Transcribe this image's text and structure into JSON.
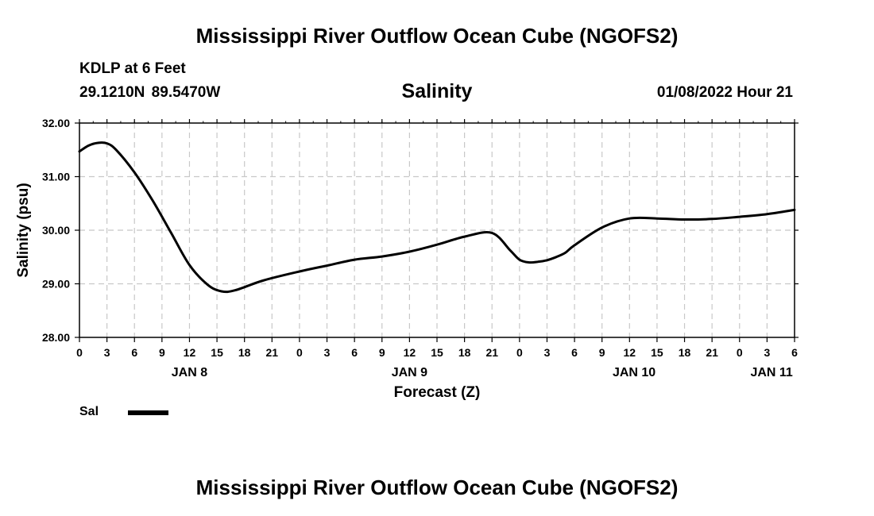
{
  "header": {
    "title": "Mississippi River Outflow Ocean Cube (NGOFS2)",
    "station": "KDLP at 6 Feet",
    "coords": "29.1210N 89.5470W",
    "chart_title": "Salinity",
    "datetime": "01/08/2022 Hour 21"
  },
  "legend": {
    "label": "Sal",
    "color": "#000000"
  },
  "footer": {
    "title": "Mississippi River Outflow Ocean Cube (NGOFS2)"
  },
  "chart_data": {
    "type": "line",
    "title": "Salinity",
    "xlabel": "Forecast (Z)",
    "ylabel": "Salinity (psu)",
    "xlim": [
      0,
      78
    ],
    "ylim": [
      28.0,
      32.0
    ],
    "grid": true,
    "y_ticks": [
      28.0,
      29.0,
      30.0,
      31.0,
      32.0
    ],
    "y_tick_labels": [
      "28.00",
      "29.00",
      "30.00",
      "31.00",
      "32.00"
    ],
    "x_ticks": [
      0,
      3,
      6,
      9,
      12,
      15,
      18,
      21,
      24,
      27,
      30,
      33,
      36,
      39,
      42,
      45,
      48,
      51,
      54,
      57,
      60,
      63,
      66,
      69,
      72,
      75,
      78
    ],
    "x_tick_labels": [
      "0",
      "3",
      "6",
      "9",
      "12",
      "15",
      "18",
      "21",
      "0",
      "3",
      "6",
      "9",
      "12",
      "15",
      "18",
      "21",
      "0",
      "3",
      "6",
      "9",
      "12",
      "15",
      "18",
      "21",
      "0",
      "3",
      "6"
    ],
    "day_labels": [
      {
        "label": "JAN 8",
        "x": 12
      },
      {
        "label": "JAN 9",
        "x": 36
      },
      {
        "label": "JAN 10",
        "x": 60.5
      },
      {
        "label": "JAN 11",
        "x": 75.5
      }
    ],
    "series": [
      {
        "name": "Sal",
        "color": "#000000",
        "x": [
          0,
          1,
          2,
          3,
          4,
          6,
          8,
          10,
          12,
          14,
          15.5,
          17,
          20,
          24,
          27,
          30,
          33,
          36,
          39,
          42,
          45,
          47,
          48,
          49,
          50,
          51,
          52,
          53,
          54,
          57,
          60,
          63,
          66,
          69,
          72,
          75,
          78
        ],
        "y": [
          31.47,
          31.58,
          31.63,
          31.62,
          31.5,
          31.08,
          30.55,
          29.95,
          29.35,
          28.98,
          28.86,
          28.88,
          29.06,
          29.23,
          29.34,
          29.45,
          29.51,
          29.6,
          29.73,
          29.88,
          29.95,
          29.62,
          29.45,
          29.4,
          29.41,
          29.44,
          29.5,
          29.58,
          29.72,
          30.05,
          30.22,
          30.22,
          30.2,
          30.21,
          30.25,
          30.3,
          30.38
        ]
      }
    ]
  }
}
